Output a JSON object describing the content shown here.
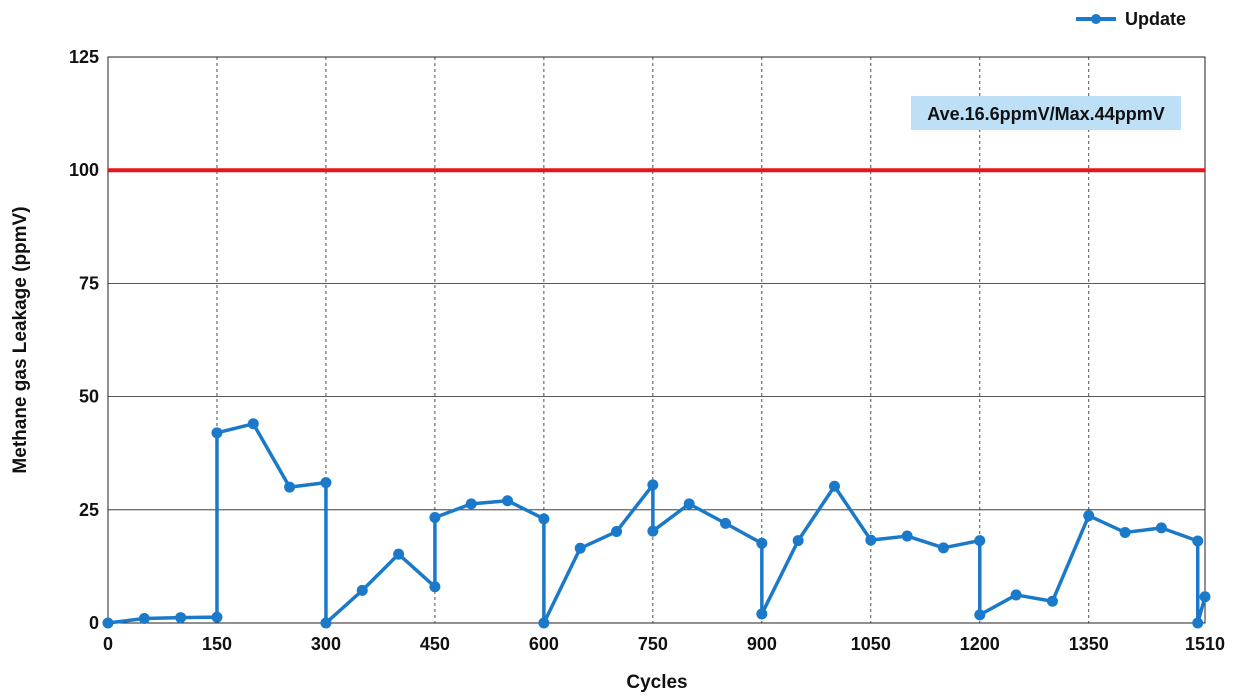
{
  "chart_data": {
    "type": "line",
    "xlabel": "Cycles",
    "ylabel": "Methane gas Leakage (ppmV)",
    "xlim": [
      0,
      1510
    ],
    "ylim": [
      0,
      125
    ],
    "x_ticks": [
      0,
      150,
      300,
      450,
      600,
      750,
      900,
      1050,
      1200,
      1350,
      1510
    ],
    "y_ticks": [
      0,
      25,
      50,
      75,
      100,
      125
    ],
    "grid": "vertical dashed, horizontal solid",
    "legend": {
      "position": "top-right",
      "entries": [
        "Update"
      ]
    },
    "annotation": {
      "text": "Ave.16.6ppmV/Max.44ppmV",
      "position": "top-right"
    },
    "reference_line": {
      "y": 100,
      "color": "#e8141b"
    },
    "series": [
      {
        "name": "Update",
        "color": "#1a7ac9",
        "points": [
          [
            0,
            0
          ],
          [
            50,
            1
          ],
          [
            100,
            1.2
          ],
          [
            150,
            1.3
          ],
          [
            150,
            42
          ],
          [
            200,
            44
          ],
          [
            250,
            30
          ],
          [
            300,
            31
          ],
          [
            300,
            0
          ],
          [
            350,
            7.2
          ],
          [
            400,
            15.2
          ],
          [
            450,
            8
          ],
          [
            450,
            23.3
          ],
          [
            500,
            26.3
          ],
          [
            550,
            27
          ],
          [
            600,
            23
          ],
          [
            600,
            0
          ],
          [
            650,
            16.5
          ],
          [
            700,
            20.2
          ],
          [
            750,
            30.5
          ],
          [
            750,
            20.3
          ],
          [
            800,
            26.3
          ],
          [
            850,
            22
          ],
          [
            900,
            17.6
          ],
          [
            900,
            2
          ],
          [
            950,
            18.2
          ],
          [
            1000,
            30.2
          ],
          [
            1050,
            18.3
          ],
          [
            1100,
            19.2
          ],
          [
            1150,
            16.6
          ],
          [
            1200,
            18.2
          ],
          [
            1200,
            1.8
          ],
          [
            1250,
            6.2
          ],
          [
            1300,
            4.8
          ],
          [
            1350,
            23.7
          ],
          [
            1400,
            20
          ],
          [
            1450,
            21
          ],
          [
            1500,
            18.1
          ],
          [
            1500,
            0
          ],
          [
            1510,
            5.8
          ]
        ]
      }
    ]
  }
}
